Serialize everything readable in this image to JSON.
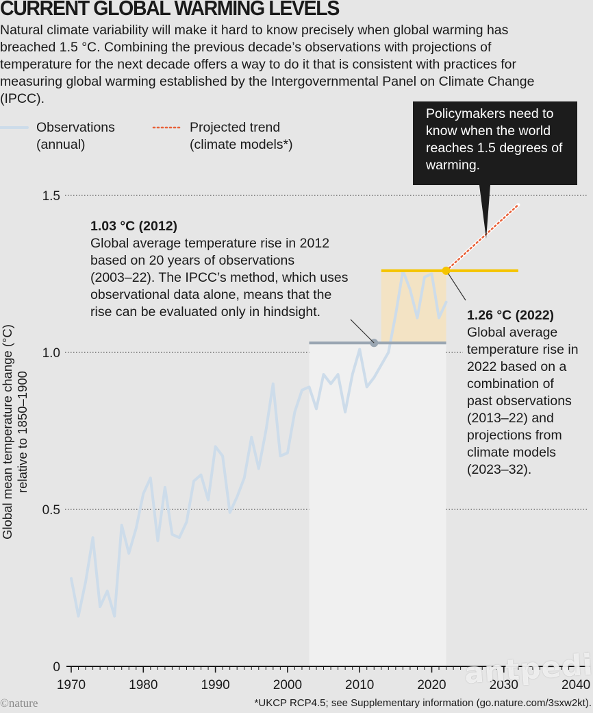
{
  "title": "CURRENT GLOBAL WARMING LEVELS",
  "subtitle": "Natural climate variability will make it hard to know precisely when global warming has breached 1.5 °C. Combining the previous decade’s observations with projections of temperature for the next decade offers a way to do it that is consistent with practices for measuring global warming established by the Intergovernmental Panel on Climate Change (IPCC).",
  "legend": {
    "observations": {
      "line1": "Observations",
      "line2": "(annual)"
    },
    "projected": {
      "line1": "Projected trend",
      "line2": "(climate models*)"
    }
  },
  "callout": "Policymakers need to know when the world reaches 1.5 degrees of warming.",
  "annotation_2012": {
    "head": "1.03 °C (2012)",
    "body": "Global average temperature rise in 2012\nbased on 20 years of observations\n(2003–22). The IPCC’s method, which uses\nobservational data alone, means that the\nrise can be evaluated  only in hindsight."
  },
  "annotation_2022": {
    "head": "1.26 °C (2022)",
    "body": "Global average\ntemperature rise in\n2022 based on a\ncombination of\npast observations\n(2013–22) and\nprojections from\nclimate models\n(2023–32)."
  },
  "ylabel_line1": "Global mean temperature change (°C)",
  "ylabel_line2": "relative to 1850–1900",
  "credit": "©nature",
  "footnote": "*UKCP RCP4.5; see Supplementary information (go.nature.com/3sxw2kt).",
  "watermark": "antpedia",
  "colors": {
    "observations": "#cddcea",
    "projected": "#e8623a",
    "hindsight_band": "#f0f0f0",
    "projection_band": "#f3e3c4",
    "mean_2012": "#9aa6b2",
    "mean_2022": "#f5c400",
    "callout_bg": "#1c1c1c"
  },
  "chart_data": {
    "type": "line",
    "xlabel": "",
    "ylabel": "Global mean temperature change (°C) relative to 1850–1900",
    "xlim": [
      1969,
      2042
    ],
    "ylim": [
      0,
      1.5
    ],
    "xticks": [
      1970,
      1980,
      1990,
      2000,
      2010,
      2020,
      2030,
      2040
    ],
    "yticks": [
      0,
      0.5,
      1.0,
      1.5
    ],
    "ytick_labels": [
      "0",
      "0.5",
      "1.0",
      "1.5"
    ],
    "gridlines": "dotted at 0.5, 1.0, 1.5",
    "series": [
      {
        "name": "Observations (annual)",
        "x": [
          1970,
          1971,
          1972,
          1973,
          1974,
          1975,
          1976,
          1977,
          1978,
          1979,
          1980,
          1981,
          1982,
          1983,
          1984,
          1985,
          1986,
          1987,
          1988,
          1989,
          1990,
          1991,
          1992,
          1993,
          1994,
          1995,
          1996,
          1997,
          1998,
          1999,
          2000,
          2001,
          2002,
          2003,
          2004,
          2005,
          2006,
          2007,
          2008,
          2009,
          2010,
          2011,
          2012,
          2013,
          2014,
          2015,
          2016,
          2017,
          2018,
          2019,
          2020,
          2021,
          2022
        ],
        "y": [
          0.28,
          0.16,
          0.27,
          0.41,
          0.19,
          0.24,
          0.16,
          0.45,
          0.36,
          0.44,
          0.55,
          0.6,
          0.4,
          0.57,
          0.42,
          0.41,
          0.46,
          0.59,
          0.61,
          0.53,
          0.7,
          0.67,
          0.49,
          0.54,
          0.6,
          0.73,
          0.63,
          0.75,
          0.9,
          0.67,
          0.68,
          0.81,
          0.88,
          0.89,
          0.82,
          0.93,
          0.9,
          0.93,
          0.81,
          0.93,
          1.01,
          0.89,
          0.92,
          0.96,
          1.0,
          1.12,
          1.26,
          1.2,
          1.11,
          1.24,
          1.25,
          1.11,
          1.16
        ]
      },
      {
        "name": "Projected trend (climate models*)",
        "x": [
          2022,
          2032
        ],
        "y": [
          1.26,
          1.47
        ]
      }
    ],
    "annotations": [
      {
        "year": 2012,
        "value": 1.03,
        "label": "1.03 °C (2012)",
        "window": [
          2003,
          2022
        ]
      },
      {
        "year": 2022,
        "value": 1.26,
        "label": "1.26 °C (2022)",
        "window": [
          2013,
          2032
        ]
      }
    ]
  }
}
